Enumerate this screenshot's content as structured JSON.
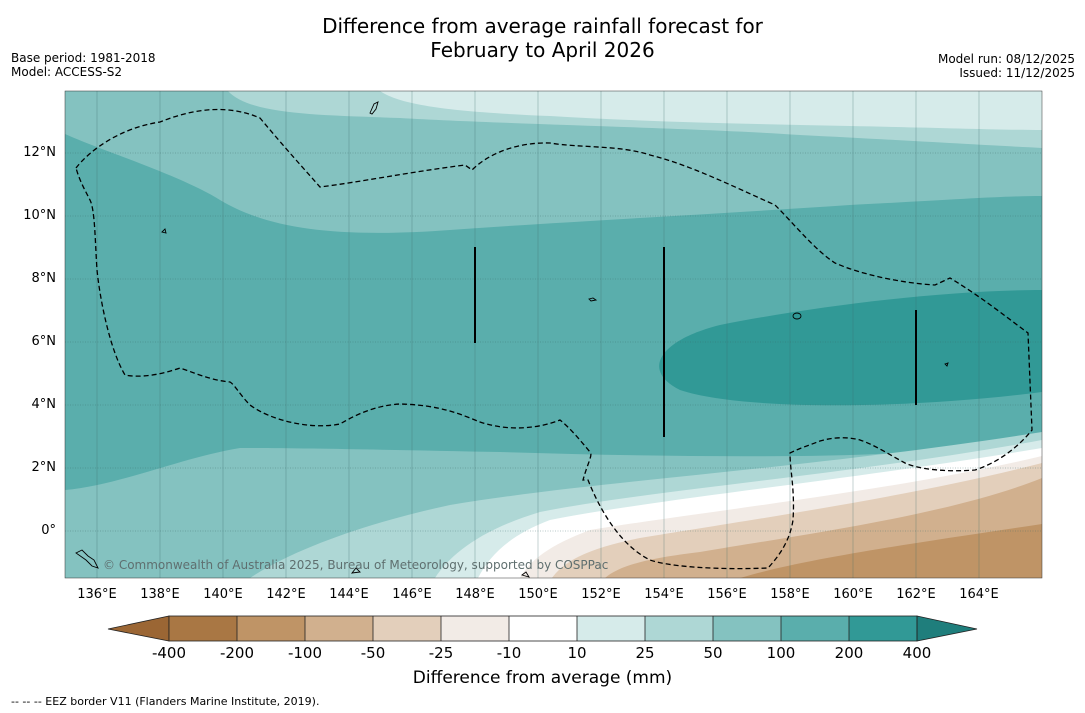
{
  "title_line1": "Difference from average rainfall forecast for",
  "title_line2": "February to April 2026",
  "base_period": "Base period: 1981-2018",
  "model": "Model: ACCESS-S2",
  "model_run": "Model run: 08/12/2025",
  "issued": "Issued: 11/12/2025",
  "copyright": "© Commonwealth of Australia 2025, Bureau of Meteorology, supported by COSPPac",
  "lat_labels": [
    "12°N",
    "10°N",
    "8°N",
    "6°N",
    "4°N",
    "2°N",
    "0°"
  ],
  "lon_labels": [
    "136°E",
    "138°E",
    "140°E",
    "142°E",
    "144°E",
    "146°E",
    "148°E",
    "150°E",
    "152°E",
    "154°E",
    "156°E",
    "158°E",
    "160°E",
    "162°E",
    "164°E"
  ],
  "colorbar": {
    "title": "Difference from average (mm)",
    "ticks": [
      "-400",
      "-200",
      "-100",
      "-50",
      "-25",
      "-10",
      "10",
      "25",
      "50",
      "100",
      "200",
      "400"
    ],
    "colors": [
      "#a97744",
      "#bf9466",
      "#d1b08e",
      "#e3cfbb",
      "#f2ebe6",
      "#ffffff",
      "#d6ebea",
      "#aed7d5",
      "#84c2c0",
      "#5aaeac",
      "#319996",
      "#1f7e7c"
    ]
  },
  "footnote": "--  --  -- EEZ border V11 (Flanders Marine Institute, 2019)."
}
